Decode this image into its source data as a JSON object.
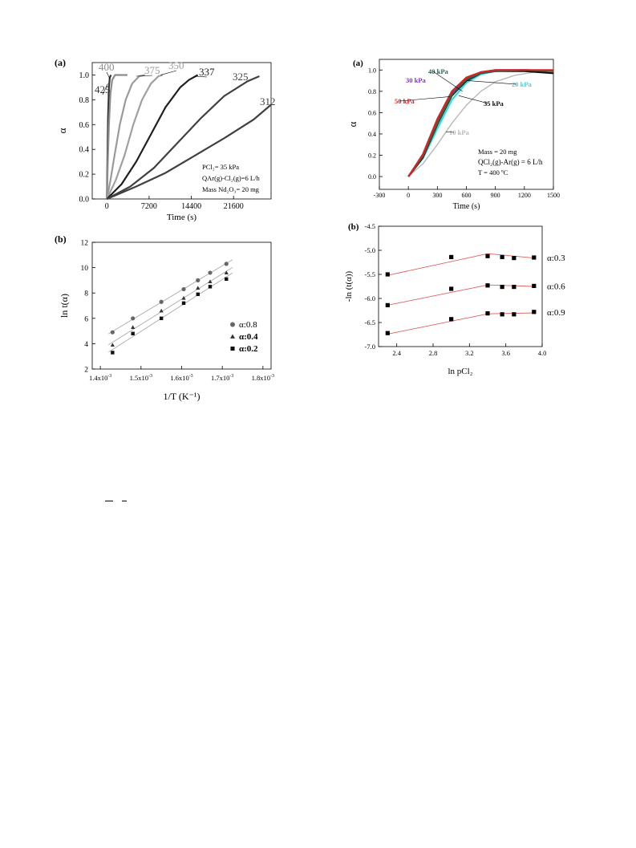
{
  "chart_data": [
    {
      "panel": "(a)",
      "type": "line",
      "xlabel": "Time (s)",
      "ylabel": "α",
      "xlim": [
        -2500,
        28000
      ],
      "ylim": [
        0,
        1.1
      ],
      "xticks": [
        0,
        7200,
        14400,
        21600
      ],
      "xtick_labels": [
        "0",
        "7200",
        "14400",
        "21600"
      ],
      "yticks": [
        0.0,
        0.2,
        0.4,
        0.6,
        0.8,
        1.0
      ],
      "ytick_labels": [
        "0.0",
        "0.2",
        "0.4",
        "0.6",
        "0.8",
        "1.0"
      ],
      "annotation_lines": [
        "PCl₂= 35 kPa",
        "QAr(g)-Cl₂(g)=6 L/h",
        "Mass Nd₂O₃= 20 mg"
      ],
      "series": [
        {
          "name": "425",
          "color": "#333333",
          "x": [
            0,
            80,
            200,
            350,
            500,
            700
          ],
          "y": [
            0,
            0.3,
            0.65,
            0.9,
            0.98,
            1.0
          ]
        },
        {
          "name": "400",
          "color": "#8c8c8c",
          "x": [
            0,
            150,
            350,
            600,
            900,
            1400,
            3500
          ],
          "y": [
            0,
            0.3,
            0.6,
            0.85,
            0.96,
            1.0,
            1.0
          ]
        },
        {
          "name": "375",
          "color": "#9a9a9a",
          "x": [
            0,
            600,
            1300,
            2200,
            3200,
            4300,
            5500,
            6500
          ],
          "y": [
            0,
            0.15,
            0.35,
            0.6,
            0.8,
            0.93,
            0.99,
            1.0
          ]
        },
        {
          "name": "350",
          "color": "#a0a0a0",
          "x": [
            0,
            1500,
            3000,
            4500,
            6000,
            7500,
            8800,
            9500
          ],
          "y": [
            0,
            0.15,
            0.35,
            0.6,
            0.8,
            0.93,
            0.99,
            1.0
          ]
        },
        {
          "name": "337",
          "color": "#1f1f1f",
          "x": [
            0,
            2500,
            5000,
            7500,
            10000,
            12500,
            14000,
            15500
          ],
          "y": [
            0,
            0.12,
            0.3,
            0.52,
            0.74,
            0.9,
            0.96,
            1.0
          ]
        },
        {
          "name": "325",
          "color": "#404040",
          "x": [
            0,
            4000,
            8000,
            12000,
            16000,
            20000,
            24000,
            26000
          ],
          "y": [
            0,
            0.1,
            0.25,
            0.45,
            0.65,
            0.83,
            0.95,
            0.99
          ]
        },
        {
          "name": "312",
          "color": "#404040",
          "x": [
            0,
            5000,
            10000,
            15000,
            20000,
            25000,
            28000
          ],
          "y": [
            0,
            0.1,
            0.21,
            0.35,
            0.49,
            0.64,
            0.76
          ]
        }
      ]
    },
    {
      "panel": "(b)",
      "type": "scatter",
      "xlabel": "1/T (K⁻¹)",
      "ylabel": "ln t(α)",
      "xlim": [
        0.00138,
        0.00182
      ],
      "ylim": [
        2,
        12
      ],
      "xticks": [
        0.0014,
        0.0015,
        0.0016,
        0.0017,
        0.0018
      ],
      "xtick_base": [
        "1.4x10",
        "1.5x10",
        "1.6x10",
        "1.7x10",
        "1.8x10"
      ],
      "xtick_exp": "-3",
      "yticks": [
        2,
        4,
        6,
        8,
        10,
        12
      ],
      "ytick_labels": [
        "2",
        "4",
        "6",
        "8",
        "10",
        "12"
      ],
      "legend_position": "lower-right",
      "series": [
        {
          "name": "α:0.8",
          "marker": "circle",
          "color": "#666666",
          "x": [
            0.00143,
            0.00148,
            0.00155,
            0.001605,
            0.00164,
            0.00167,
            0.00171
          ],
          "y": [
            4.9,
            6.0,
            7.3,
            8.3,
            9.0,
            9.6,
            10.3
          ]
        },
        {
          "name": "α:0.4",
          "marker": "triangle",
          "color": "#333333",
          "x": [
            0.00143,
            0.00148,
            0.00155,
            0.001605,
            0.00164,
            0.00167,
            0.00171
          ],
          "y": [
            3.9,
            5.3,
            6.6,
            7.6,
            8.4,
            8.9,
            9.6
          ]
        },
        {
          "name": "α:0.2",
          "marker": "square",
          "color": "#111111",
          "x": [
            0.00143,
            0.00148,
            0.00155,
            0.001605,
            0.00164,
            0.00167,
            0.00171
          ],
          "y": [
            3.3,
            4.8,
            6.0,
            7.2,
            7.9,
            8.5,
            9.1
          ]
        }
      ]
    },
    {
      "panel": "(a)",
      "type": "line",
      "xlabel": "Time (s)",
      "ylabel": "α",
      "xlim": [
        -300,
        1500
      ],
      "ylim": [
        -0.12,
        1.1
      ],
      "xticks": [
        -300,
        0,
        300,
        600,
        900,
        1200,
        1500
      ],
      "xtick_labels": [
        "-300",
        "0",
        "300",
        "600",
        "900",
        "1200",
        "1500"
      ],
      "yticks": [
        0.0,
        0.2,
        0.4,
        0.6,
        0.8,
        1.0
      ],
      "ytick_labels": [
        "0.0",
        "0.2",
        "0.4",
        "0.6",
        "0.8",
        "1.0"
      ],
      "annotation_lines": [
        "Mass = 20 mg",
        "QCl₂(g)-Ar(g) = 6 L/h",
        "T = 400 ºC"
      ],
      "series": [
        {
          "name": "10 kPa",
          "color": "#b8b8b8",
          "x": [
            0,
            150,
            300,
            450,
            600,
            750,
            900,
            1100,
            1300,
            1500
          ],
          "y": [
            0,
            0.12,
            0.3,
            0.5,
            0.67,
            0.8,
            0.89,
            0.95,
            0.98,
            0.99
          ]
        },
        {
          "name": "20 kPa",
          "color": "#3ad6e0",
          "x": [
            0,
            150,
            300,
            450,
            600,
            750,
            900,
            1200,
            1500
          ],
          "y": [
            0,
            0.17,
            0.45,
            0.72,
            0.88,
            0.96,
            0.99,
            1.0,
            0.99
          ]
        },
        {
          "name": "30 kPa",
          "color": "#8b2be2",
          "x": [
            0,
            150,
            300,
            450,
            600,
            750,
            900,
            1200,
            1500
          ],
          "y": [
            0,
            0.2,
            0.52,
            0.78,
            0.92,
            0.98,
            1.0,
            1.0,
            0.99
          ]
        },
        {
          "name": "35 kPa",
          "color": "#111111",
          "x": [
            0,
            150,
            300,
            450,
            600,
            750,
            900,
            1200,
            1500
          ],
          "y": [
            0,
            0.18,
            0.49,
            0.76,
            0.9,
            0.97,
            0.99,
            0.99,
            0.97
          ]
        },
        {
          "name": "40 kPa",
          "color": "#1f6b4a",
          "x": [
            0,
            150,
            300,
            450,
            600,
            750,
            900,
            1200,
            1500
          ],
          "y": [
            0,
            0.19,
            0.5,
            0.77,
            0.91,
            0.97,
            0.99,
            1.0,
            0.99
          ]
        },
        {
          "name": "50 kPa",
          "color": "#e02020",
          "x": [
            0,
            150,
            300,
            450,
            600,
            750,
            900,
            1200,
            1500
          ],
          "y": [
            0,
            0.21,
            0.54,
            0.8,
            0.93,
            0.98,
            1.0,
            1.0,
            1.0
          ]
        }
      ]
    },
    {
      "panel": "(b)",
      "type": "scatter",
      "xlabel": "ln pCl₂",
      "ylabel": "-ln (t(α))",
      "xlim": [
        2.2,
        4.0
      ],
      "ylim": [
        -7.0,
        -4.5
      ],
      "xticks": [
        2.4,
        2.8,
        3.2,
        3.6,
        4.0
      ],
      "xtick_labels": [
        "2.4",
        "2.8",
        "3.2",
        "3.6",
        "4.0"
      ],
      "yticks": [
        -7.0,
        -6.5,
        -6.0,
        -5.5,
        -5.0,
        -4.5
      ],
      "ytick_labels": [
        "-7.0",
        "-6.5",
        "-6.0",
        "-5.5",
        "-5.0",
        "-4.5"
      ],
      "series": [
        {
          "name": "α:0.3",
          "x": [
            2.3,
            3.0,
            3.4,
            3.56,
            3.69,
            3.91
          ],
          "y": [
            -5.5,
            -5.14,
            -5.12,
            -5.14,
            -5.16,
            -5.15
          ],
          "fit": [
            [
              2.3,
              -5.52
            ],
            [
              3.4,
              -5.07
            ],
            [
              3.91,
              -5.16
            ]
          ]
        },
        {
          "name": "α:0.6",
          "x": [
            2.3,
            3.0,
            3.4,
            3.56,
            3.69,
            3.91
          ],
          "y": [
            -6.14,
            -5.8,
            -5.73,
            -5.76,
            -5.76,
            -5.74
          ],
          "fit": [
            [
              2.3,
              -6.14
            ],
            [
              3.4,
              -5.72
            ],
            [
              3.91,
              -5.75
            ]
          ]
        },
        {
          "name": "α:0.9",
          "x": [
            2.3,
            3.0,
            3.4,
            3.56,
            3.69,
            3.91
          ],
          "y": [
            -6.72,
            -6.43,
            -6.31,
            -6.33,
            -6.33,
            -6.28
          ],
          "fit": [
            [
              2.3,
              -6.74
            ],
            [
              3.4,
              -6.32
            ],
            [
              3.91,
              -6.3
            ]
          ]
        }
      ]
    }
  ]
}
